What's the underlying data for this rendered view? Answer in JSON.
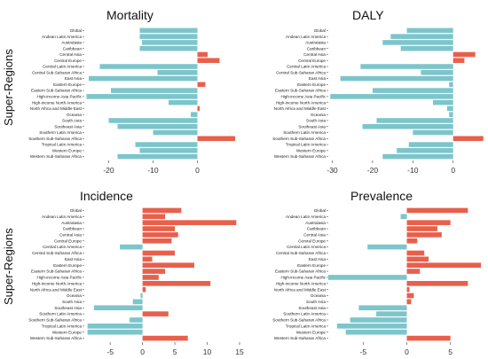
{
  "y_axis_label": "Super-Regions",
  "colors": {
    "negative": "#7cc5cb",
    "positive": "#e8604c"
  },
  "chart_data": [
    {
      "type": "bar",
      "orientation": "horizontal",
      "title": "Mortality",
      "categories": [
        "Global",
        "Andean Latin America",
        "Australasia",
        "Caribbean",
        "Central Asia",
        "Central Europe",
        "Central Latin America",
        "Central Sub-Saharan Africa",
        "East Asia",
        "Eastern Europe",
        "Eastern Sub-Saharan Africa",
        "High-income Asia Pacific",
        "High-income North America",
        "North Africa and Middle East",
        "Oceania",
        "South Asia",
        "Southeast Asia",
        "Southern Latin America",
        "Southern Sub-Saharan Africa",
        "Tropical Latin America",
        "Western Europe",
        "Western Sub-Saharan Africa"
      ],
      "values": [
        -13,
        -13,
        -12.5,
        -13,
        2.3,
        5,
        -22,
        -9,
        -24.5,
        1.8,
        -19.5,
        -25,
        -6.5,
        0.5,
        -1.5,
        -20,
        -18,
        -10,
        8.5,
        -14,
        -13,
        -18
      ],
      "xticks": [
        -20,
        -10,
        0
      ],
      "xlim": [
        -25.5,
        9.5
      ]
    },
    {
      "type": "bar",
      "orientation": "horizontal",
      "title": "DALY",
      "categories": [
        "Global",
        "Andean Latin America",
        "Australasia",
        "Caribbean",
        "Central Asia",
        "Central Europe",
        "Central Latin America",
        "Central Sub-Saharan Africa",
        "East Asia",
        "Eastern Europe",
        "Eastern Sub-Saharan Africa",
        "High-income Asia Pacific",
        "High-income North America",
        "North Africa and Middle East",
        "Oceania",
        "South Asia",
        "Southeast Asia",
        "Southern Latin America",
        "Southern Sub-Saharan Africa",
        "Tropical Latin America",
        "Western Europe",
        "Western Sub-Saharan Africa"
      ],
      "values": [
        -11.5,
        -15.5,
        -17.5,
        -13,
        5.5,
        2.8,
        -23,
        -8,
        -28,
        -1,
        -20,
        -30.5,
        -5,
        -1.5,
        -1,
        -19,
        -22.5,
        -10,
        7.5,
        -11,
        -14,
        -17.5
      ],
      "xticks": [
        -30,
        -20,
        -10,
        0
      ],
      "xlim": [
        -31,
        8
      ]
    },
    {
      "type": "bar",
      "orientation": "horizontal",
      "title": "Incidence",
      "categories": [
        "Global",
        "Andean Latin America",
        "Australasia",
        "Caribbean",
        "Central Asia",
        "Central Europe",
        "Central Latin America",
        "Central Sub-Saharan Africa",
        "East Asia",
        "Eastern Europe",
        "Eastern Sub-Saharan Africa",
        "High-income Asia Pacific",
        "High-income North America",
        "North Africa and Middle East",
        "Oceania",
        "South Asia",
        "Southeast Asia",
        "Southern Latin America",
        "Southern Sub-Saharan Africa",
        "Tropical Latin America",
        "Western Europe",
        "Western Sub-Saharan Africa"
      ],
      "values": [
        6,
        3.5,
        14.5,
        5,
        5.5,
        4.5,
        -3.5,
        5,
        1.5,
        8,
        3.5,
        2.5,
        10.5,
        0.5,
        -0.3,
        -1.5,
        -7.5,
        4,
        -2,
        -8.5,
        -8.5,
        7
      ],
      "xticks": [
        -5,
        0,
        5,
        10,
        15
      ],
      "xlim": [
        -9,
        15
      ]
    },
    {
      "type": "bar",
      "orientation": "horizontal",
      "title": "Prevalence",
      "categories": [
        "Global",
        "Andean Latin America",
        "Australasia",
        "Caribbean",
        "Central Asia",
        "Central Europe",
        "Central Latin America",
        "Central Sub-Saharan Africa",
        "East Asia",
        "Eastern Europe",
        "Eastern Sub-Saharan Africa",
        "High-income Asia Pacific",
        "High-income North America",
        "North Africa and Middle East",
        "Oceania",
        "South Asia",
        "Southeast Asia",
        "Southern Latin America",
        "Southern Sub-Saharan Africa",
        "Tropical Latin America",
        "Western Europe",
        "Western Sub-Saharan Africa"
      ],
      "values": [
        7,
        -0.7,
        5,
        3.5,
        4,
        1.2,
        -4.5,
        2,
        2.5,
        8.5,
        1.5,
        -9,
        7,
        0.3,
        0.8,
        0.5,
        -5.5,
        -3.5,
        -6.5,
        -8,
        -7,
        5
      ],
      "xticks": [
        -5,
        0,
        5
      ],
      "xlim": [
        -9,
        9
      ]
    }
  ]
}
